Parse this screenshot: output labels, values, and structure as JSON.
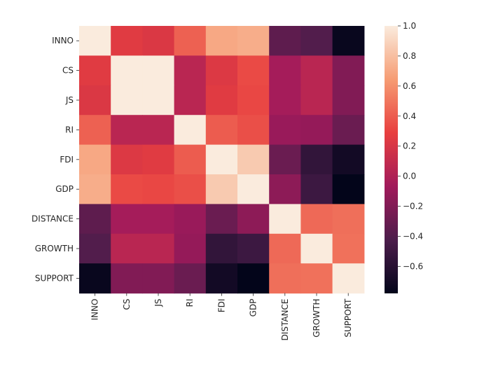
{
  "chart_data": {
    "type": "heatmap",
    "title": "",
    "xlabel": "",
    "ylabel": "",
    "rows": [
      "INNO",
      "CS",
      "JS",
      "RI",
      "FDI",
      "GDP",
      "DISTANCE",
      "GROWTH",
      "SUPPORT"
    ],
    "columns": [
      "INNO",
      "CS",
      "JS",
      "RI",
      "FDI",
      "GDP",
      "DISTANCE",
      "GROWTH",
      "SUPPORT"
    ],
    "values": [
      [
        1.0,
        0.25,
        0.22,
        0.42,
        0.7,
        0.72,
        -0.35,
        -0.4,
        -0.75
      ],
      [
        0.25,
        1.0,
        1.0,
        0.05,
        0.23,
        0.33,
        -0.05,
        0.05,
        -0.2
      ],
      [
        0.22,
        1.0,
        1.0,
        0.05,
        0.25,
        0.32,
        -0.05,
        0.05,
        -0.2
      ],
      [
        0.42,
        0.05,
        0.05,
        1.0,
        0.4,
        0.35,
        -0.1,
        -0.12,
        -0.3
      ],
      [
        0.7,
        0.23,
        0.25,
        0.4,
        1.0,
        0.85,
        -0.3,
        -0.55,
        -0.7
      ],
      [
        0.72,
        0.33,
        0.32,
        0.35,
        0.85,
        1.0,
        -0.15,
        -0.5,
        -0.78
      ],
      [
        -0.35,
        -0.05,
        -0.05,
        -0.1,
        -0.3,
        -0.15,
        1.0,
        0.45,
        0.47
      ],
      [
        -0.4,
        0.05,
        0.05,
        -0.12,
        -0.55,
        -0.5,
        0.45,
        1.0,
        0.48
      ],
      [
        -0.75,
        -0.2,
        -0.2,
        -0.3,
        -0.7,
        -0.78,
        0.47,
        0.48,
        1.0
      ]
    ],
    "color_range": [
      -0.78,
      1.0
    ],
    "colorbar_ticks": [
      "1.0",
      "0.8",
      "0.6",
      "0.4",
      "0.2",
      "0.0",
      "−0.2",
      "−0.4",
      "−0.6"
    ],
    "colorbar_tick_values": [
      1.0,
      0.8,
      0.6,
      0.4,
      0.2,
      0.0,
      -0.2,
      -0.4,
      -0.6
    ],
    "colormap": "rocket",
    "colormap_stops": [
      "#03051a",
      "#4c1d4b",
      "#a11a5b",
      "#e83f3f",
      "#f69c73",
      "#faebdd"
    ],
    "grid": false,
    "legend": "colorbar-right"
  }
}
